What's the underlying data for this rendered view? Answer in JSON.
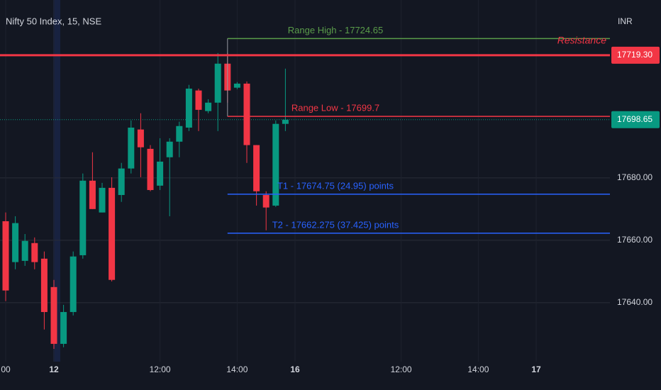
{
  "chart_data": {
    "type": "candlestick",
    "title": "Nifty 50 Index, 15, NSE",
    "currency": "INR",
    "up_color": "#089981",
    "down_color": "#f23645",
    "grid": true,
    "categories": [
      "00",
      null,
      null,
      null,
      null,
      "12",
      null,
      null,
      null,
      null,
      null,
      null,
      null,
      null,
      null,
      null,
      "12:00",
      null,
      null,
      null,
      null,
      null,
      null,
      null,
      "14:00",
      null,
      null,
      null,
      null,
      null,
      "16",
      null,
      null,
      null,
      null,
      null,
      null,
      null,
      null,
      null,
      null,
      "12:00",
      null,
      null,
      null,
      null,
      null,
      null,
      null,
      "14:00",
      null,
      null,
      null,
      null,
      null,
      "17",
      null,
      null,
      null,
      null,
      null,
      null,
      null
    ],
    "open": [
      17666.1,
      17653.0,
      17653.4,
      17659.1,
      17654.1,
      17645.0,
      17626.8,
      17637.0,
      17655.2,
      17679.1,
      17668.9,
      17676.8,
      17674.5,
      17683.0,
      17695.5,
      17689.3,
      17677.5,
      17686.6,
      17691.6,
      17696.1,
      17708.0,
      17701.4,
      17704.1,
      17716.6,
      17708.9,
      17710.2,
      17690.5,
      17674.5,
      17671.1,
      17697.3,
      null,
      null,
      null,
      null,
      null,
      null,
      null,
      null,
      null,
      null,
      null,
      null,
      null,
      null,
      null,
      null,
      null,
      null,
      null,
      null,
      null,
      null,
      null,
      null,
      null,
      null,
      null,
      null,
      null,
      null,
      null,
      null,
      null
    ],
    "high": [
      17668.9,
      17667.7,
      17662.0,
      17660.9,
      17656.4,
      17647.3,
      17639.3,
      17656.4,
      17681.4,
      17688.2,
      17678.4,
      17680.2,
      17684.8,
      17698.4,
      17700.7,
      17690.5,
      17692.7,
      17692.7,
      17698.0,
      17709.8,
      17708.6,
      17705.2,
      17720.0,
      17720.0,
      17710.7,
      17710.9,
      17690.5,
      17675.7,
      17698.4,
      17715.0,
      null,
      null,
      null,
      null,
      null,
      null,
      null,
      null,
      null,
      null,
      null,
      null,
      null,
      null,
      null,
      null,
      null,
      null,
      null,
      null,
      null,
      null,
      null,
      null,
      null,
      null,
      null,
      null,
      null,
      null,
      null,
      null,
      null
    ],
    "low": [
      17640.5,
      17650.7,
      17651.8,
      17650.7,
      17631.4,
      17625.2,
      17625.7,
      17635.9,
      17654.1,
      17670.0,
      17668.9,
      17646.8,
      17672.3,
      17681.4,
      17680.2,
      17675.7,
      17676.1,
      17667.7,
      17686.6,
      17695.0,
      17695.0,
      17700.7,
      17695.0,
      17704.1,
      17708.4,
      17684.8,
      17671.1,
      17663.2,
      17670.7,
      17695.0,
      null,
      null,
      null,
      null,
      null,
      null,
      null,
      null,
      null,
      null,
      null,
      null,
      null,
      null,
      null,
      null,
      null,
      null,
      null,
      null,
      null,
      null,
      null,
      null,
      null,
      null,
      null,
      null,
      null,
      null,
      null,
      null,
      null
    ],
    "close": [
      17643.9,
      17665.5,
      17659.8,
      17653.0,
      17637.0,
      17626.8,
      17637.0,
      17654.8,
      17679.1,
      17670.0,
      17676.8,
      17647.3,
      17683.0,
      17696.1,
      17689.8,
      17676.1,
      17685.2,
      17691.6,
      17696.6,
      17708.6,
      17701.8,
      17704.1,
      17716.6,
      17708.0,
      17710.2,
      17690.5,
      17675.7,
      17670.5,
      17697.3,
      17698.65,
      null,
      null,
      null,
      null,
      null,
      null,
      null,
      null,
      null,
      null,
      null,
      null,
      null,
      null,
      null,
      null,
      null,
      null,
      null,
      null,
      null,
      null,
      null,
      null,
      null,
      null,
      null,
      null,
      null,
      null,
      null,
      null,
      null
    ],
    "ylim": [
      17621.1,
      17737.0
    ],
    "yticks": [
      {
        "value": 17640,
        "label": "17640.00"
      },
      {
        "value": 17660,
        "label": "17660.00"
      },
      {
        "value": 17680,
        "label": "17680.00"
      }
    ],
    "levels": [
      {
        "label": "Range High - 17724.65",
        "value": 17724.65,
        "color": "#5a9c4a"
      },
      {
        "label": "Range Low - 17699.7",
        "value": 17699.7,
        "color": "#f23645"
      },
      {
        "label": "T1 - 17674.75 (24.95) points",
        "value": 17674.75,
        "color": "#2962ff"
      },
      {
        "label": "T2 - 17662.275 (37.425) points",
        "value": 17662.275,
        "color": "#2962ff"
      }
    ],
    "resistance": {
      "label": "Resistance",
      "value": 17719.3,
      "price_label": "17719.30",
      "color": "#f23645"
    },
    "last_price": {
      "value": 17698.65,
      "price_label": "17698.65",
      "color": "#089981"
    }
  }
}
